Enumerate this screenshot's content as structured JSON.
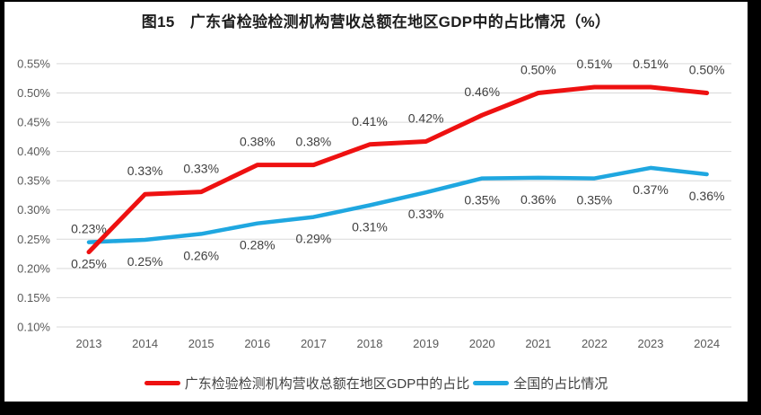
{
  "title": "图15　广东省检验检测机构营收总额在地区GDP中的占比情况（%）",
  "chart_data": {
    "type": "line",
    "title": "图15　广东省检验检测机构营收总额在地区GDP中的占比情况（%）",
    "categories": [
      "2013",
      "2014",
      "2015",
      "2016",
      "2017",
      "2018",
      "2019",
      "2020",
      "2021",
      "2022",
      "2023",
      "2024"
    ],
    "y_axis": {
      "ticks": [
        "0.55%",
        "0.50%",
        "0.45%",
        "0.40%",
        "0.35%",
        "0.30%",
        "0.25%",
        "0.20%",
        "0.15%",
        "0.10%"
      ],
      "min": 0.1,
      "max": 0.55,
      "step": 0.05,
      "unit": "%"
    },
    "grid": true,
    "legend_position": "bottom",
    "colors": {
      "grid": "#d9d9d9",
      "axis_text": "#595959",
      "data_label_text": "#3f3f3f",
      "title_text": "#1d1d1d"
    },
    "series": [
      {
        "name": "广东检验检测机构营收总额在地区GDP中的占比",
        "color": "#ee1111",
        "values": [
          0.23,
          0.33,
          0.33,
          0.38,
          0.38,
          0.41,
          0.42,
          0.46,
          0.5,
          0.51,
          0.51,
          0.5
        ],
        "labels": [
          "0.23%",
          "0.33%",
          "0.33%",
          "0.38%",
          "0.38%",
          "0.41%",
          "0.42%",
          "0.46%",
          "0.50%",
          "0.51%",
          "0.51%",
          "0.50%"
        ],
        "plot_values": [
          0.228,
          0.327,
          0.331,
          0.377,
          0.377,
          0.412,
          0.417,
          0.462,
          0.5,
          0.51,
          0.51,
          0.5
        ],
        "label_side": "above"
      },
      {
        "name": "全国的占比情况",
        "color": "#1fa7e0",
        "values": [
          0.25,
          0.25,
          0.26,
          0.28,
          0.29,
          0.31,
          0.33,
          0.35,
          0.36,
          0.35,
          0.37,
          0.36
        ],
        "labels": [
          "0.25%",
          "0.25%",
          "0.26%",
          "0.28%",
          "0.29%",
          "0.31%",
          "0.33%",
          "0.35%",
          "0.36%",
          "0.35%",
          "0.37%",
          "0.36%"
        ],
        "plot_values": [
          0.245,
          0.249,
          0.259,
          0.277,
          0.288,
          0.308,
          0.33,
          0.354,
          0.355,
          0.354,
          0.372,
          0.361
        ],
        "label_side": "below"
      }
    ]
  }
}
